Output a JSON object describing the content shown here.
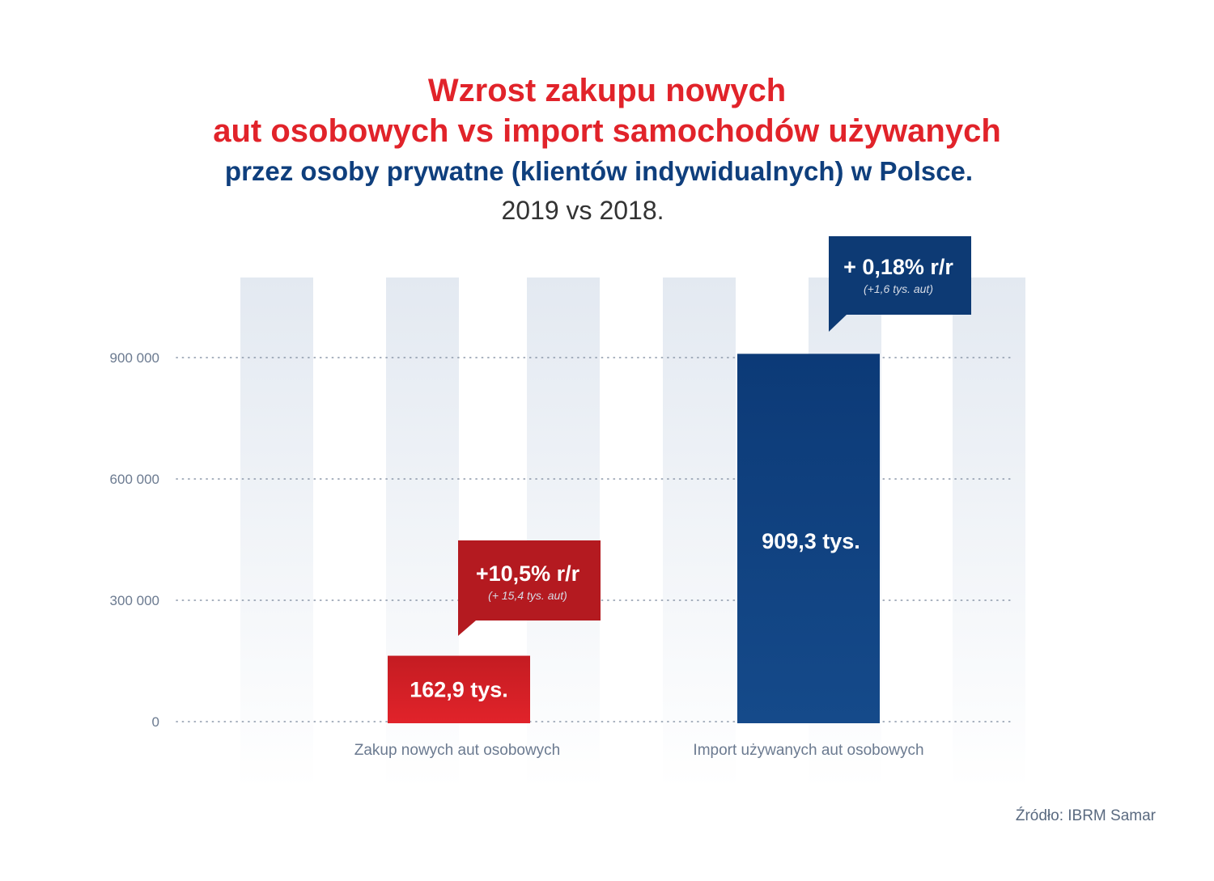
{
  "title": {
    "line1": "Wzrost zakupu nowych",
    "line2": "aut osobowych vs import samochodów używanych",
    "line3": "przez osoby prywatne (klientów indywidualnych) w Polsce.",
    "period": "2019 vs 2018."
  },
  "source": "Źródło: IBRM Samar",
  "colors": {
    "red": "#e1232a",
    "red_dark": "#b41a20",
    "blue": "#0f4584",
    "blue_dark": "#0d3a74",
    "background_columns": "#e6ebf2",
    "axis_text": "#6b7a90"
  },
  "chart_data": {
    "type": "bar",
    "categories": [
      "Zakup nowych aut osobowych",
      "Import używanych aut osobowych"
    ],
    "values": [
      162900,
      909300
    ],
    "value_labels": [
      "162,9 tys.",
      "909,3 tys."
    ],
    "bar_colors": [
      "#e1232a",
      "#0f4584"
    ],
    "ylim": [
      0,
      1100000
    ],
    "yticks": [
      0,
      300000,
      600000,
      900000
    ],
    "ytick_labels": [
      "0",
      "300 000",
      "600 000",
      "900 000"
    ],
    "grid": true,
    "annotations": [
      {
        "category": 0,
        "main": "+10,5% r/r",
        "sub": "(+ 15,4 tys. aut)",
        "color": "#b41a20"
      },
      {
        "category": 1,
        "main": "+ 0,18% r/r",
        "sub": "(+1,6 tys. aut)",
        "color": "#0d3a74"
      }
    ]
  }
}
